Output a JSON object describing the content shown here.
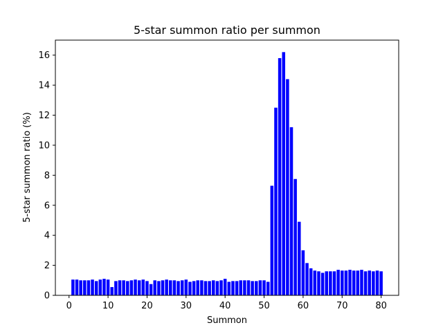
{
  "chart_data": {
    "type": "bar",
    "title": "5-star summon ratio per summon",
    "xlabel": "Summon",
    "ylabel": "5-star summon ratio (%)",
    "xlim": [
      -3.5,
      84.5
    ],
    "ylim": [
      0,
      17
    ],
    "xticks": [
      0,
      10,
      20,
      30,
      40,
      50,
      60,
      70,
      80
    ],
    "yticks": [
      0,
      2,
      4,
      6,
      8,
      10,
      12,
      14,
      16
    ],
    "grid": false,
    "bar_color": "#0000ff",
    "x": [
      1,
      2,
      3,
      4,
      5,
      6,
      7,
      8,
      9,
      10,
      11,
      12,
      13,
      14,
      15,
      16,
      17,
      18,
      19,
      20,
      21,
      22,
      23,
      24,
      25,
      26,
      27,
      28,
      29,
      30,
      31,
      32,
      33,
      34,
      35,
      36,
      37,
      38,
      39,
      40,
      41,
      42,
      43,
      44,
      45,
      46,
      47,
      48,
      49,
      50,
      51,
      52,
      53,
      54,
      55,
      56,
      57,
      58,
      59,
      60,
      61,
      62,
      63,
      64,
      65,
      66,
      67,
      68,
      69,
      70,
      71,
      72,
      73,
      74,
      75,
      76,
      77,
      78,
      79,
      80
    ],
    "values": [
      1.05,
      1.05,
      1.0,
      1.0,
      1.0,
      1.05,
      0.95,
      1.05,
      1.1,
      1.05,
      0.55,
      0.95,
      1.0,
      1.0,
      0.95,
      1.0,
      1.05,
      1.0,
      1.05,
      0.95,
      0.75,
      1.0,
      0.95,
      1.0,
      1.05,
      1.0,
      1.0,
      0.95,
      1.0,
      1.05,
      0.9,
      0.95,
      1.0,
      1.0,
      0.95,
      0.95,
      1.0,
      0.95,
      1.0,
      1.1,
      0.9,
      0.95,
      0.95,
      1.0,
      1.0,
      1.0,
      0.95,
      0.95,
      1.0,
      1.0,
      0.9,
      7.3,
      12.5,
      15.8,
      16.2,
      14.4,
      11.2,
      7.75,
      4.9,
      3.0,
      2.15,
      1.8,
      1.65,
      1.6,
      1.5,
      1.6,
      1.6,
      1.6,
      1.7,
      1.65,
      1.65,
      1.7,
      1.65,
      1.65,
      1.7,
      1.6,
      1.65,
      1.6,
      1.65,
      1.6
    ]
  }
}
